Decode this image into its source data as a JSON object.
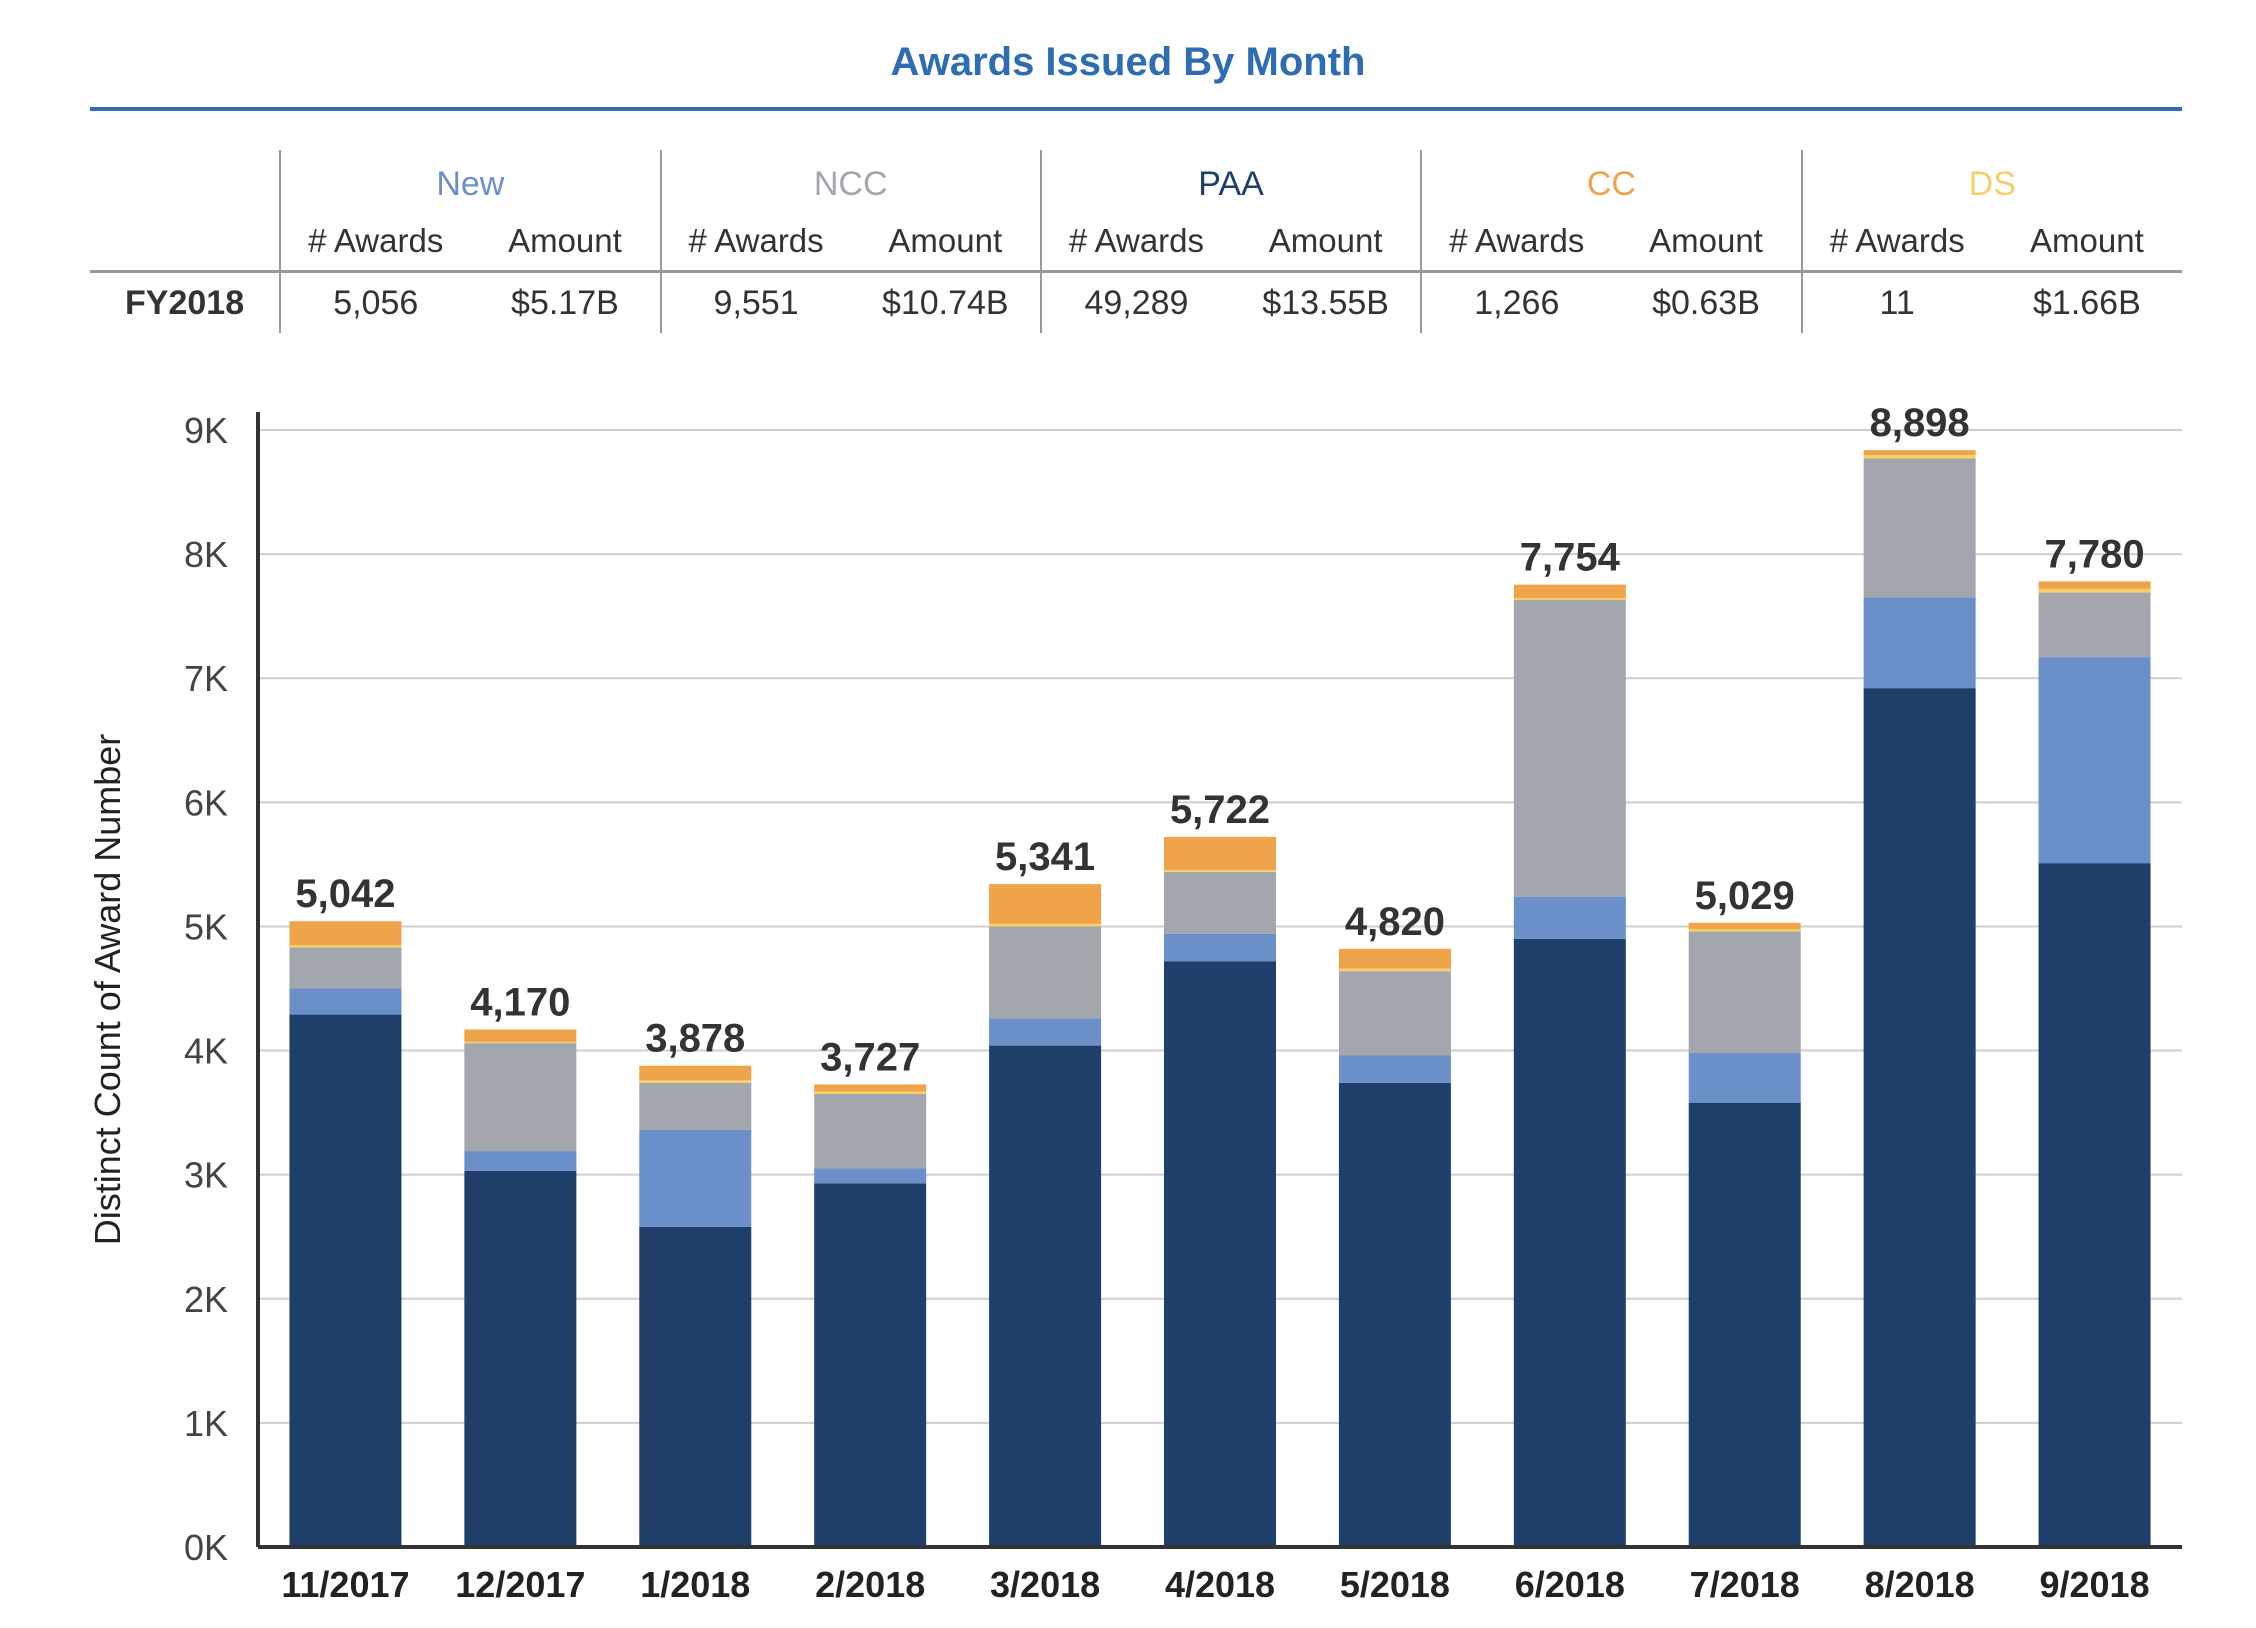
{
  "title": "Awards Issued By Month",
  "summary": {
    "groups": [
      {
        "name": "New",
        "color": "#6b8fc8",
        "awards_label": "# Awards",
        "amount_label": "Amount",
        "awards": "5,056",
        "amount": "$5.17B"
      },
      {
        "name": "NCC",
        "color": "#a3a6ad",
        "awards_label": "# Awards",
        "amount_label": "Amount",
        "awards": "9,551",
        "amount": "$10.74B"
      },
      {
        "name": "PAA",
        "color": "#1f3f6b",
        "awards_label": "# Awards",
        "amount_label": "Amount",
        "awards": "49,289",
        "amount": "$13.55B"
      },
      {
        "name": "CC",
        "color": "#f0a44a",
        "awards_label": "# Awards",
        "amount_label": "Amount",
        "awards": "1,266",
        "amount": "$0.63B"
      },
      {
        "name": "DS",
        "color": "#f6cf68",
        "awards_label": "# Awards",
        "amount_label": "Amount",
        "awards": "11",
        "amount": "$1.66B"
      }
    ],
    "row_label": "FY2018"
  },
  "chart_data": {
    "type": "bar",
    "stacked": true,
    "ylabel": "Distinct Count of Award Number",
    "ylim": [
      0,
      9000
    ],
    "yticks": [
      0,
      1000,
      2000,
      3000,
      4000,
      5000,
      6000,
      7000,
      8000,
      9000
    ],
    "ytick_labels": [
      "0K",
      "1K",
      "2K",
      "3K",
      "4K",
      "5K",
      "6K",
      "7K",
      "8K",
      "9K"
    ],
    "grid": true,
    "categories": [
      "11/2017",
      "12/2017",
      "1/2018",
      "2/2018",
      "3/2018",
      "4/2018",
      "5/2018",
      "6/2018",
      "7/2018",
      "8/2018",
      "9/2018"
    ],
    "totals": [
      "5,042",
      "4,170",
      "3,878",
      "3,727",
      "5,341",
      "5,722",
      "4,820",
      "7,754",
      "5,029",
      "8,898",
      "7,780"
    ],
    "series": [
      {
        "name": "PAA",
        "color": "#1f3f6b",
        "values": [
          4290,
          3030,
          2580,
          2930,
          4040,
          4720,
          3740,
          4900,
          3580,
          6920,
          5510
        ]
      },
      {
        "name": "New",
        "color": "#6b8fc8",
        "values": [
          210,
          160,
          780,
          120,
          220,
          220,
          220,
          340,
          400,
          730,
          1660
        ]
      },
      {
        "name": "NCC",
        "color": "#a3a6ad",
        "values": [
          330,
          870,
          380,
          600,
          740,
          500,
          680,
          2390,
          980,
          1120,
          520
        ]
      },
      {
        "name": "DS",
        "color": "#f6cf68",
        "values": [
          20,
          10,
          20,
          20,
          21,
          12,
          20,
          14,
          19,
          28,
          30
        ]
      },
      {
        "name": "CC",
        "color": "#f0a44a",
        "values": [
          192,
          100,
          118,
          57,
          320,
          270,
          160,
          110,
          50,
          40,
          60
        ]
      }
    ]
  }
}
